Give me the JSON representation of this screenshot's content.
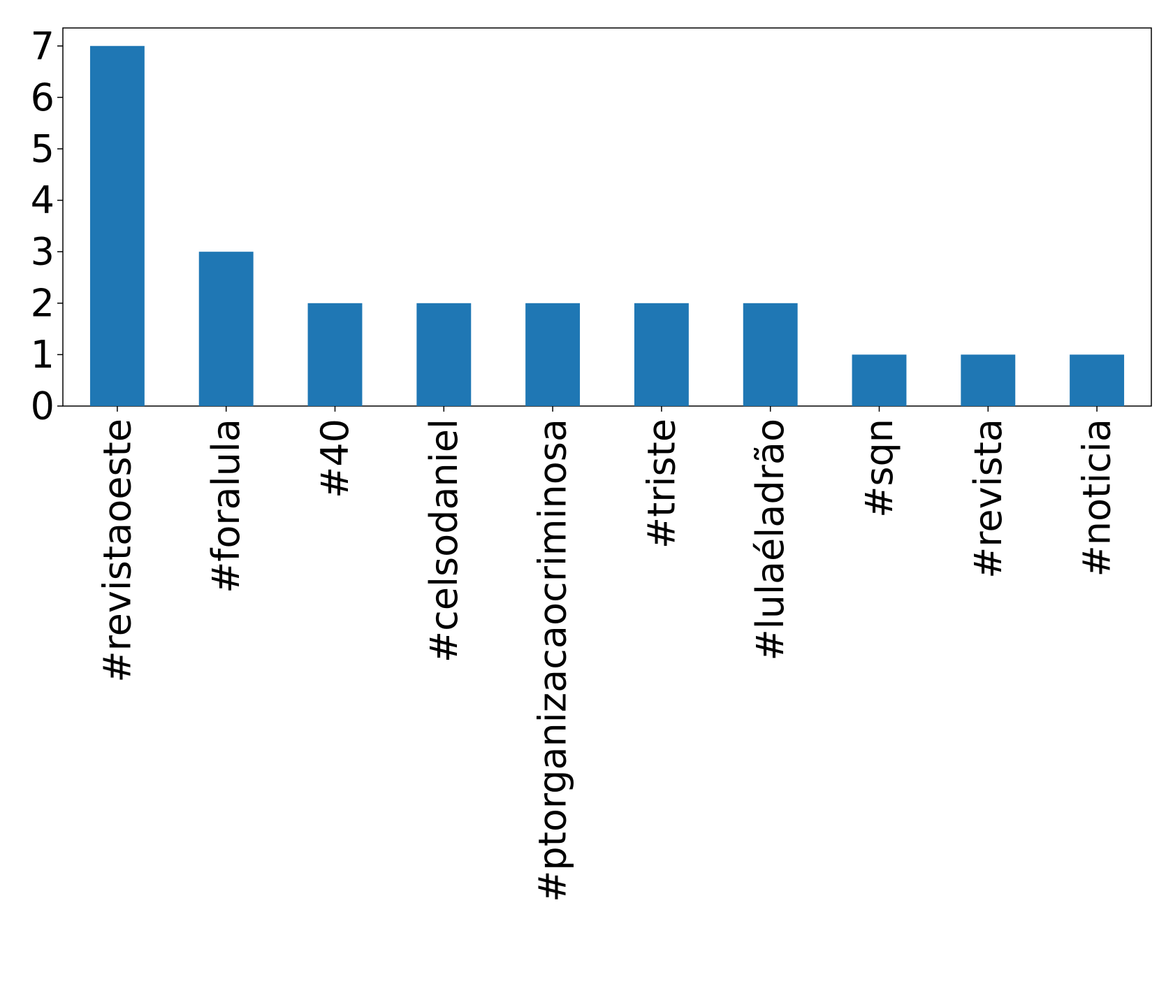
{
  "chart_data": {
    "type": "bar",
    "categories": [
      "#revistaoeste",
      "#foralula",
      "#40",
      "#celsodaniel",
      "#ptorganizacaocriminosa",
      "#triste",
      "#lulaéladrão",
      "#sqn",
      "#revista",
      "#noticia"
    ],
    "values": [
      7,
      3,
      2,
      2,
      2,
      2,
      2,
      1,
      1,
      1
    ],
    "color": "#1f77b4",
    "ylim": [
      0,
      7.35
    ],
    "yticks": [
      0,
      1,
      2,
      3,
      4,
      5,
      6,
      7
    ],
    "grid": false
  }
}
